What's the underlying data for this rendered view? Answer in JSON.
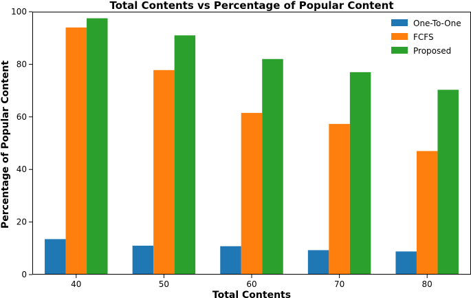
{
  "chart_data": {
    "type": "bar",
    "title": "Total Contents vs Percentage of Popular Content",
    "xlabel": "Total Contents",
    "ylabel": "Percentage of Popular Content",
    "categories": [
      "40",
      "50",
      "60",
      "70",
      "80"
    ],
    "ylim": [
      0,
      100
    ],
    "yticks": [
      0,
      20,
      40,
      60,
      80,
      100
    ],
    "grid": false,
    "legend_position": "top-right",
    "series": [
      {
        "name": "One-To-One",
        "color": "#1f77b4",
        "values": [
          13.5,
          11.0,
          10.8,
          9.3,
          8.8
        ]
      },
      {
        "name": "FCFS",
        "color": "#ff7f0e",
        "values": [
          94.0,
          77.8,
          61.5,
          57.3,
          47.0
        ]
      },
      {
        "name": "Proposed",
        "color": "#2ca02c",
        "values": [
          97.5,
          91.0,
          82.0,
          77.0,
          70.3
        ]
      }
    ]
  }
}
